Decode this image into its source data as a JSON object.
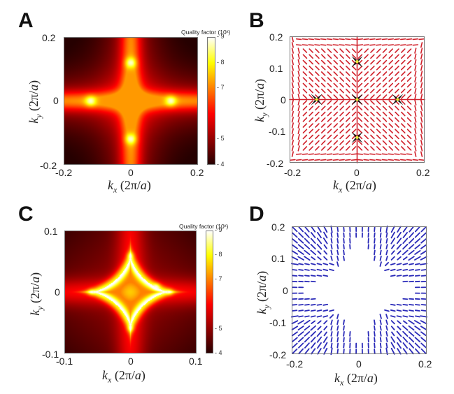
{
  "figure": {
    "panels": [
      "A",
      "B",
      "C",
      "D"
    ]
  },
  "chart_data": [
    {
      "panel": "A",
      "type": "heatmap",
      "title": "",
      "xlabel": "k_x (2π/a)",
      "ylabel": "k_y (2π/a)",
      "xlim": [
        -0.2,
        0.2
      ],
      "ylim": [
        -0.2,
        0.2
      ],
      "xticks": [
        "-0.2",
        "0",
        "0.2"
      ],
      "yticks": [
        "0.2",
        "0",
        "-0.2"
      ],
      "colorbar": {
        "title": "Quality factor (10ˣ)",
        "range": [
          4,
          9
        ],
        "ticks": [
          "9",
          "8",
          "7",
          "5",
          "4"
        ],
        "colormap": "hot"
      },
      "features": {
        "description": "cross-shaped high-Q band along kx=0 and ky=0; four bright maxima",
        "bright_spots": [
          [
            0,
            0.12
          ],
          [
            0,
            -0.12
          ],
          [
            -0.12,
            0
          ],
          [
            0.12,
            0
          ]
        ],
        "peak_log10_Q": 8.5,
        "background_log10_Q": 4.6
      }
    },
    {
      "panel": "B",
      "type": "scatter",
      "subtype": "polarization-vector-field",
      "xlabel": "k_x (2π/a)",
      "ylabel": "k_y (2π/a)",
      "xlim": [
        -0.2,
        0.2
      ],
      "ylim": [
        -0.2,
        0.2
      ],
      "xticks": [
        "-0.2",
        "0",
        "0.2"
      ],
      "yticks": [
        "0.2",
        "0.1",
        "0",
        "-0.1",
        "-0.2"
      ],
      "line_color": "#d0202a",
      "singularities": [
        [
          0,
          0
        ],
        [
          0,
          0.12
        ],
        [
          0,
          -0.12
        ],
        [
          -0.12,
          0
        ],
        [
          0.12,
          0
        ]
      ],
      "marker": "black 4-point star with yellow center"
    },
    {
      "panel": "C",
      "type": "heatmap",
      "xlabel": "k_x (2π/a)",
      "ylabel": "k_y (2π/a)",
      "xlim": [
        -0.1,
        0.1
      ],
      "ylim": [
        -0.1,
        0.1
      ],
      "xticks": [
        "-0.1",
        "0",
        "0.1"
      ],
      "yticks": [
        "0.1",
        "0",
        "-0.1"
      ],
      "colorbar": {
        "title": "Quality factor (10ˣ)",
        "range": [
          4,
          9
        ],
        "ticks": [
          "9",
          "8",
          "7",
          "5",
          "4"
        ],
        "colormap": "hot"
      },
      "features": {
        "description": "astroid (four-pointed star) shaped ridge of high Q",
        "star_tip_radius": 0.06,
        "bright_spots": [
          [
            0,
            0.06
          ],
          [
            0,
            -0.06
          ],
          [
            -0.06,
            0
          ],
          [
            0.06,
            0
          ],
          [
            0.04,
            0.01
          ]
        ],
        "peak_log10_Q": 9,
        "background_log10_Q": 5
      }
    },
    {
      "panel": "D",
      "type": "scatter",
      "subtype": "polarization-vector-field",
      "xlabel": "k_x (2π/a)",
      "ylabel": "k_y (2π/a)",
      "xlim": [
        -0.2,
        0.2
      ],
      "ylim": [
        -0.2,
        0.2
      ],
      "xticks": [
        "-0.2",
        "0",
        "0.2"
      ],
      "yticks": [
        "0.2",
        "0.1",
        "0",
        "-0.1",
        "-0.2"
      ],
      "line_color": "#2a2ab8",
      "empty_region": "astroid-shaped region around origin, tip radius ≈ 0.12"
    }
  ]
}
